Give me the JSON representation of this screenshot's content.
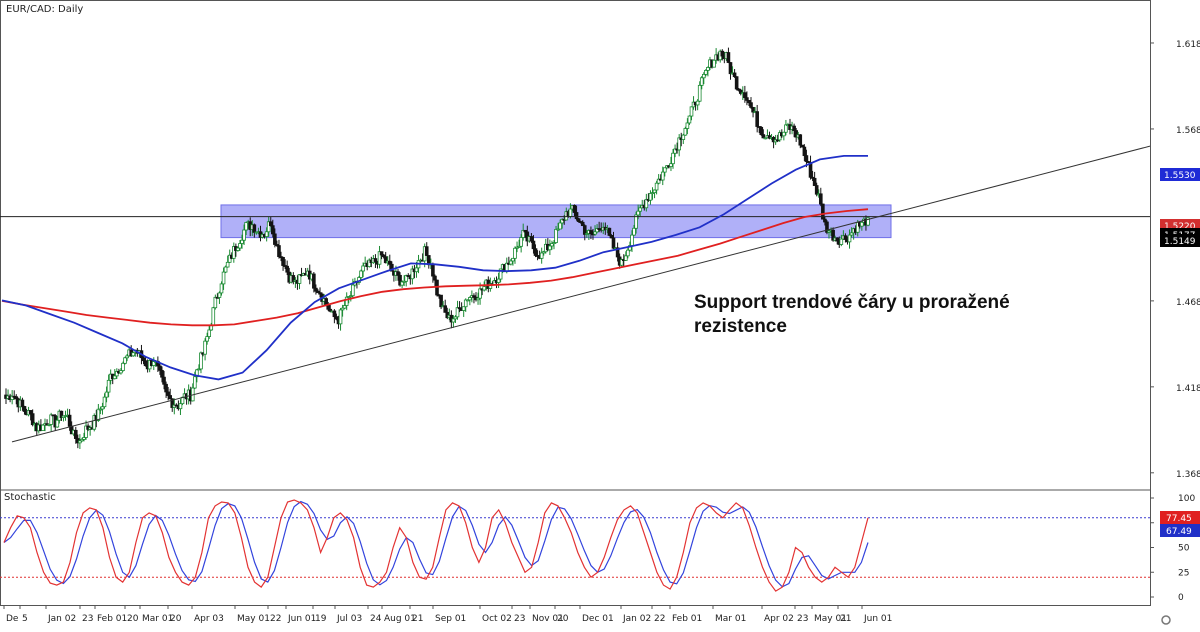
{
  "chart_data": [
    {
      "type": "candlestick",
      "title": "EUR/CAD: Daily",
      "annotation": [
        "Support trendové čáry u proražené",
        "rezistence"
      ],
      "ylim": [
        1.3587,
        1.6437
      ],
      "y_ticks": [
        "1.6187",
        "1.5687",
        "1.4687",
        "1.4187",
        "1.3687"
      ],
      "x_tick_labels": [
        "De",
        "5",
        "Jan 02",
        "23",
        "Feb 01",
        "20",
        "Mar 01",
        "20",
        "Apr 03",
        "May 01",
        "22",
        "Jun 01",
        "19",
        "Jul 03",
        "24",
        "Aug 01",
        "21",
        "Sep 01",
        "Oct 02",
        "23",
        "Nov 01",
        "20",
        "Dec 01",
        "Jan 02",
        "22",
        "Feb 01",
        "Mar 01",
        "Apr 02",
        "23",
        "May 01",
        "21",
        "Jun 01"
      ],
      "price_tags": [
        {
          "value": "1.5530",
          "color": "#1f2bd6"
        },
        {
          "value": "1.5220",
          "color": "#d32f2f"
        },
        {
          "value": "1.5177",
          "color": "#000000"
        },
        {
          "value": "1.5149",
          "color": "#000000"
        }
      ],
      "horizontal_line": 1.5177,
      "resistance_zone": [
        1.5055,
        1.5245
      ],
      "trendline": {
        "start": 1.3867,
        "end": 1.5587
      },
      "key_prices": [
        1.412,
        1.415,
        1.41,
        1.405,
        1.402,
        1.395,
        1.396,
        1.4,
        1.398,
        1.403,
        1.401,
        1.39,
        1.387,
        1.394,
        1.397,
        1.403,
        1.412,
        1.425,
        1.428,
        1.433,
        1.437,
        1.44,
        1.436,
        1.431,
        1.435,
        1.425,
        1.414,
        1.41,
        1.408,
        1.413,
        1.414,
        1.429,
        1.438,
        1.452,
        1.468,
        1.481,
        1.49,
        1.498,
        1.505,
        1.512,
        1.513,
        1.509,
        1.508,
        1.515,
        1.5,
        1.492,
        1.483,
        1.479,
        1.482,
        1.487,
        1.479,
        1.474,
        1.467,
        1.46,
        1.458,
        1.466,
        1.472,
        1.48,
        1.487,
        1.489,
        1.492,
        1.495,
        1.49,
        1.484,
        1.481,
        1.48,
        1.486,
        1.492,
        1.497,
        1.491,
        1.474,
        1.463,
        1.458,
        1.46,
        1.466,
        1.471,
        1.472,
        1.474,
        1.478,
        1.48,
        1.484,
        1.489,
        1.493,
        1.5,
        1.507,
        1.503,
        1.498,
        1.495,
        1.5,
        1.505,
        1.512,
        1.52,
        1.521,
        1.516,
        1.51,
        1.506,
        1.51,
        1.514,
        1.505,
        1.497,
        1.49,
        1.5,
        1.512,
        1.522,
        1.528,
        1.533,
        1.539,
        1.545,
        1.552,
        1.56,
        1.568,
        1.575,
        1.585,
        1.595,
        1.604,
        1.61,
        1.613,
        1.61,
        1.6,
        1.593,
        1.59,
        1.581,
        1.573,
        1.566,
        1.566,
        1.563,
        1.565,
        1.57,
        1.568,
        1.561,
        1.55,
        1.54,
        1.529,
        1.513,
        1.508,
        1.505,
        1.505,
        1.507,
        1.512,
        1.513,
        1.517
      ],
      "ma_red": [
        1.4687,
        1.4665,
        1.4645,
        1.4625,
        1.4605,
        1.459,
        1.4575,
        1.456,
        1.455,
        1.4545,
        1.4545,
        1.455,
        1.457,
        1.459,
        1.4615,
        1.465,
        1.4685,
        1.4715,
        1.474,
        1.4755,
        1.4765,
        1.4772,
        1.4775,
        1.4778,
        1.4783,
        1.4792,
        1.4805,
        1.4825,
        1.485,
        1.4875,
        1.49,
        1.4925,
        1.495,
        1.4985,
        1.502,
        1.506,
        1.51,
        1.514,
        1.5175,
        1.5195,
        1.521,
        1.522
      ],
      "ma_blue": [
        1.469,
        1.466,
        1.461,
        1.456,
        1.45,
        1.444,
        1.436,
        1.43,
        1.4255,
        1.423,
        1.427,
        1.44,
        1.456,
        1.468,
        1.476,
        1.481,
        1.486,
        1.4905,
        1.49,
        1.4885,
        1.4865,
        1.486,
        1.4865,
        1.488,
        1.492,
        1.497,
        1.5,
        1.503,
        1.507,
        1.5115,
        1.519,
        1.528,
        1.537,
        1.545,
        1.551,
        1.553,
        1.553
      ],
      "stochastic": {
        "label": "Stochastic",
        "ylim": [
          0,
          100
        ],
        "y_ticks": [
          "100",
          "75",
          "50",
          "25",
          "0"
        ],
        "levels": [
          80,
          20
        ],
        "k_tag": "77.45",
        "d_tag": "67.49",
        "k_values": [
          55,
          70,
          82,
          80,
          70,
          45,
          25,
          14,
          12,
          15,
          35,
          65,
          85,
          90,
          88,
          70,
          40,
          20,
          15,
          25,
          55,
          80,
          85,
          82,
          65,
          40,
          25,
          15,
          12,
          20,
          45,
          80,
          92,
          96,
          95,
          85,
          60,
          30,
          15,
          10,
          20,
          50,
          80,
          96,
          98,
          95,
          88,
          70,
          45,
          60,
          80,
          85,
          78,
          60,
          30,
          12,
          10,
          15,
          25,
          50,
          70,
          60,
          35,
          20,
          18,
          30,
          60,
          88,
          95,
          92,
          75,
          50,
          35,
          50,
          80,
          88,
          75,
          55,
          40,
          25,
          30,
          55,
          85,
          95,
          92,
          80,
          65,
          45,
          30,
          20,
          25,
          40,
          60,
          78,
          88,
          92,
          85,
          65,
          45,
          25,
          12,
          8,
          20,
          45,
          75,
          90,
          95,
          92,
          85,
          80,
          88,
          95,
          90,
          72,
          50,
          30,
          15,
          6,
          10,
          25,
          50,
          45,
          30,
          20,
          15,
          20,
          30,
          25,
          20,
          30,
          55,
          80
        ]
      }
    }
  ]
}
